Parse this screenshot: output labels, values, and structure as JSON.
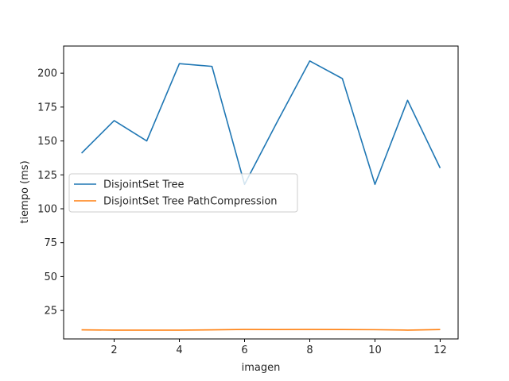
{
  "chart_data": {
    "type": "line",
    "title": "",
    "xlabel": "imagen",
    "ylabel": "tiempo (ms)",
    "xlim": [
      0.45,
      12.55
    ],
    "ylim": [
      4,
      220
    ],
    "xticks": [
      2,
      4,
      6,
      8,
      10,
      12
    ],
    "yticks": [
      25,
      50,
      75,
      100,
      125,
      150,
      175,
      200
    ],
    "grid": false,
    "legend_position": "center-left",
    "x": [
      1,
      2,
      3,
      4,
      5,
      6,
      7,
      8,
      9,
      10,
      11,
      12
    ],
    "series": [
      {
        "name": "DisjointSet Tree",
        "color": "#1f77b4",
        "values": [
          141,
          165,
          150,
          207,
          205,
          118,
          164,
          209,
          196,
          118,
          180,
          130
        ]
      },
      {
        "name": "DisjointSet Tree PathCompression",
        "color": "#ff7f0e",
        "values": [
          10.7,
          10.5,
          10.5,
          10.5,
          10.7,
          11,
          10.9,
          11,
          10.9,
          10.8,
          10.5,
          10.9
        ]
      }
    ]
  }
}
